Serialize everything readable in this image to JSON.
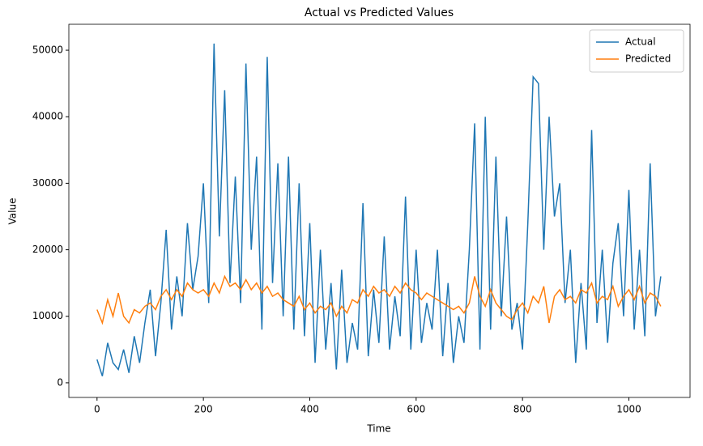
{
  "chart_data": {
    "type": "line",
    "title": "Actual vs Predicted Values",
    "xlabel": "Time",
    "ylabel": "Value",
    "x": [
      0,
      10,
      20,
      30,
      40,
      50,
      60,
      70,
      80,
      90,
      100,
      110,
      120,
      130,
      140,
      150,
      160,
      170,
      180,
      190,
      200,
      210,
      220,
      230,
      240,
      250,
      260,
      270,
      280,
      290,
      300,
      310,
      320,
      330,
      340,
      350,
      360,
      370,
      380,
      390,
      400,
      410,
      420,
      430,
      440,
      450,
      460,
      470,
      480,
      490,
      500,
      510,
      520,
      530,
      540,
      550,
      560,
      570,
      580,
      590,
      600,
      610,
      620,
      630,
      640,
      650,
      660,
      670,
      680,
      690,
      700,
      710,
      720,
      730,
      740,
      750,
      760,
      770,
      780,
      790,
      800,
      810,
      820,
      830,
      840,
      850,
      860,
      870,
      880,
      890,
      900,
      910,
      920,
      930,
      940,
      950,
      960,
      970,
      980,
      990,
      1000,
      1010,
      1020,
      1030,
      1040,
      1050,
      1060
    ],
    "series": [
      {
        "name": "Actual",
        "color": "#1f77b4",
        "values": [
          3500,
          1000,
          6000,
          3000,
          2000,
          5000,
          1500,
          7000,
          3000,
          9000,
          14000,
          4000,
          12000,
          23000,
          8000,
          16000,
          10000,
          24000,
          14000,
          19000,
          30000,
          12000,
          51000,
          22000,
          44000,
          15000,
          31000,
          12000,
          48000,
          20000,
          34000,
          8000,
          49000,
          15000,
          33000,
          10000,
          34000,
          8000,
          30000,
          7000,
          24000,
          3000,
          20000,
          5000,
          15000,
          2000,
          17000,
          3000,
          9000,
          5000,
          27000,
          4000,
          14000,
          6000,
          22000,
          5000,
          13000,
          7000,
          28000,
          5000,
          20000,
          6000,
          12000,
          8000,
          20000,
          4000,
          15000,
          3000,
          10000,
          6000,
          20000,
          39000,
          5000,
          40000,
          8000,
          34000,
          10000,
          25000,
          8000,
          12000,
          5000,
          24000,
          46000,
          45000,
          20000,
          40000,
          25000,
          30000,
          12000,
          20000,
          3000,
          15000,
          5000,
          38000,
          9000,
          20000,
          6000,
          18000,
          24000,
          10000,
          29000,
          8000,
          20000,
          7000,
          33000,
          10000,
          16000
        ]
      },
      {
        "name": "Predicted",
        "color": "#ff7f0e",
        "values": [
          11000,
          9000,
          12500,
          10000,
          13500,
          10000,
          9000,
          11000,
          10500,
          11500,
          12000,
          11000,
          13000,
          14000,
          12500,
          14000,
          13000,
          15000,
          14000,
          13500,
          14000,
          13000,
          15000,
          13500,
          16000,
          14500,
          15000,
          14000,
          15500,
          14000,
          15000,
          13500,
          14500,
          13000,
          13500,
          12500,
          12000,
          11500,
          13000,
          11000,
          12000,
          10500,
          11500,
          11000,
          12000,
          10000,
          11500,
          10500,
          12500,
          12000,
          14000,
          13000,
          14500,
          13500,
          14000,
          13000,
          14500,
          13500,
          15000,
          14000,
          13500,
          12500,
          13500,
          13000,
          12500,
          12000,
          11500,
          11000,
          11500,
          10500,
          12000,
          16000,
          13000,
          11500,
          14000,
          12000,
          11000,
          10000,
          9500,
          11000,
          12000,
          10500,
          13000,
          12000,
          14500,
          9000,
          13000,
          14000,
          12500,
          13000,
          12000,
          14000,
          13500,
          15000,
          12000,
          13000,
          12500,
          14500,
          11500,
          13000,
          14000,
          12500,
          14500,
          12000,
          13500,
          13000,
          11500
        ]
      }
    ],
    "xlim": [
      -53,
      1115
    ],
    "ylim": [
      -2200,
      53900
    ],
    "xticks": [
      0,
      200,
      400,
      600,
      800,
      1000
    ],
    "yticks": [
      0,
      10000,
      20000,
      30000,
      40000,
      50000
    ],
    "legend": "upper right"
  }
}
